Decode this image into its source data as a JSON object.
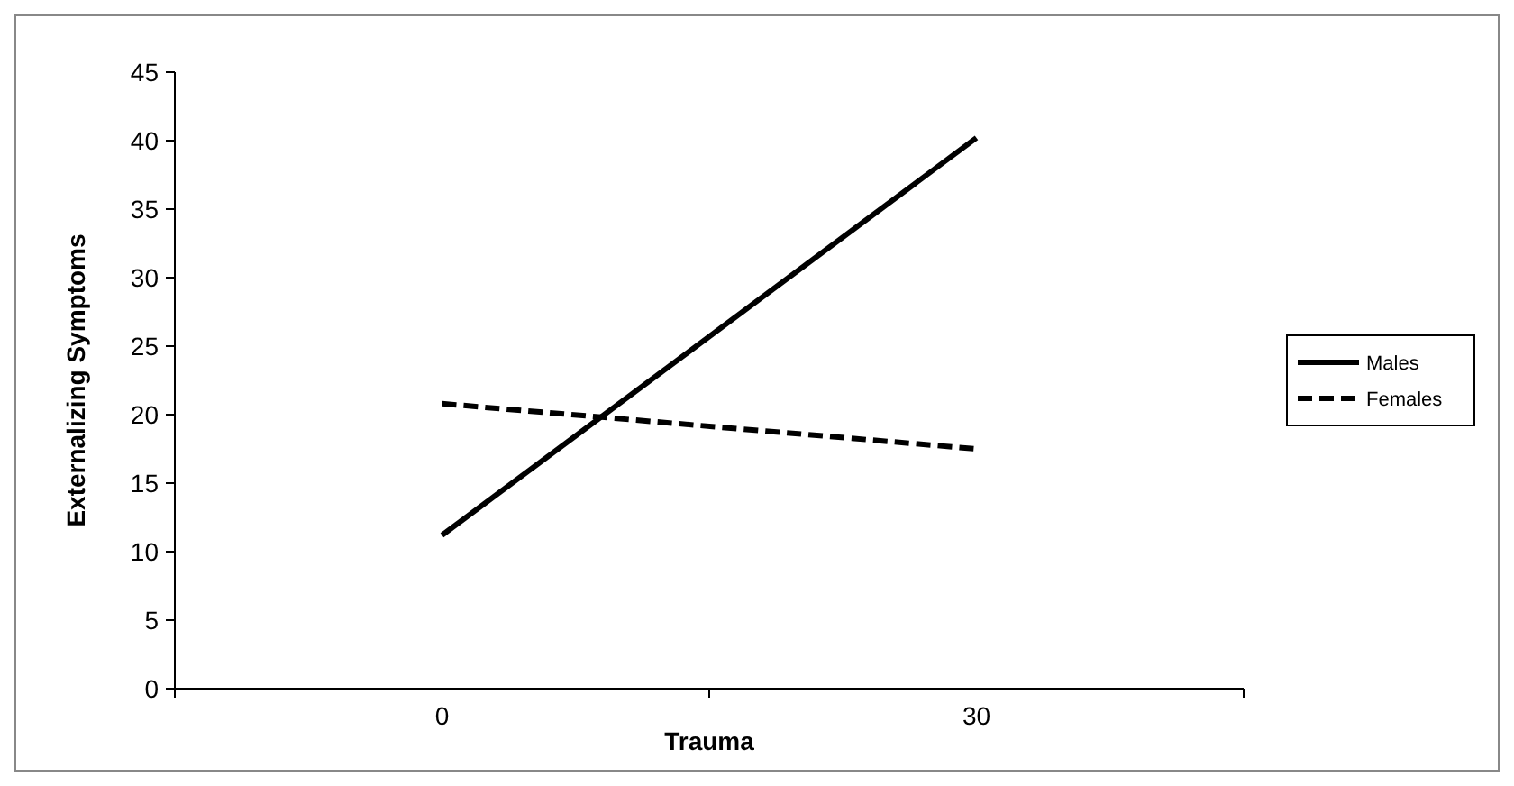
{
  "chart_data": {
    "type": "line",
    "xlabel": "Trauma",
    "ylabel": "Externalizing Symptoms",
    "categories": [
      "0",
      "30"
    ],
    "series": [
      {
        "name": "Males",
        "color": "#000000",
        "values": [
          11.2,
          40.2
        ],
        "line_style": "solid"
      },
      {
        "name": "Females",
        "color": "#000000",
        "values": [
          20.8,
          17.5
        ],
        "line_style": "dashed"
      }
    ],
    "ylim": [
      0,
      45
    ],
    "yticks": [
      0,
      5,
      10,
      15,
      20,
      25,
      30,
      35,
      40,
      45
    ],
    "grid": false,
    "legend": "right",
    "marker": "none"
  }
}
